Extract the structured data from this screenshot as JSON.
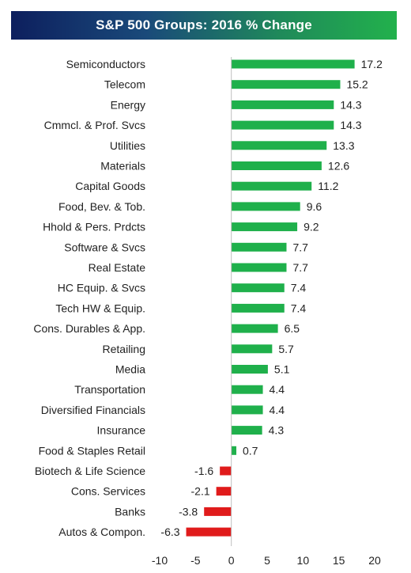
{
  "chart_data": {
    "type": "bar",
    "orientation": "horizontal",
    "title": "S&P 500 Groups: 2016 % Change",
    "categories": [
      "Semiconductors",
      "Telecom",
      "Energy",
      "Cmmcl. & Prof. Svcs",
      "Utilities",
      "Materials",
      "Capital Goods",
      "Food, Bev. & Tob.",
      "Hhold & Pers. Prdcts",
      "Software & Svcs",
      "Real Estate",
      "HC Equip. & Svcs",
      "Tech HW & Equip.",
      "Cons. Durables & App.",
      "Retailing",
      "Media",
      "Transportation",
      "Diversified Financials",
      "Insurance",
      "Food & Staples Retail",
      "Biotech & Life Science",
      "Cons. Services",
      "Banks",
      "Autos & Compon."
    ],
    "values": [
      17.2,
      15.2,
      14.3,
      14.3,
      13.3,
      12.6,
      11.2,
      9.6,
      9.2,
      7.7,
      7.7,
      7.4,
      7.4,
      6.5,
      5.7,
      5.1,
      4.4,
      4.4,
      4.3,
      0.7,
      -1.6,
      -2.1,
      -3.8,
      -6.3
    ],
    "value_labels": [
      "17.2",
      "15.2",
      "14.3",
      "14.3",
      "13.3",
      "12.6",
      "11.2",
      "9.6",
      "9.2",
      "7.7",
      "7.7",
      "7.4",
      "7.4",
      "6.5",
      "5.7",
      "5.1",
      "4.4",
      "4.4",
      "4.3",
      "0.7",
      "-1.6",
      "-2.1",
      "-3.8",
      "-6.3"
    ],
    "xlim": [
      -10,
      20
    ],
    "xticks": [
      -10,
      -5,
      0,
      5,
      10,
      15,
      20
    ],
    "xtick_labels": [
      "-10",
      "-5",
      "0",
      "5",
      "10",
      "15",
      "20"
    ],
    "grid": false,
    "colors": {
      "positive": "#1fb04b",
      "negative": "#e01b1b",
      "axis": "#bfbfbf"
    }
  }
}
